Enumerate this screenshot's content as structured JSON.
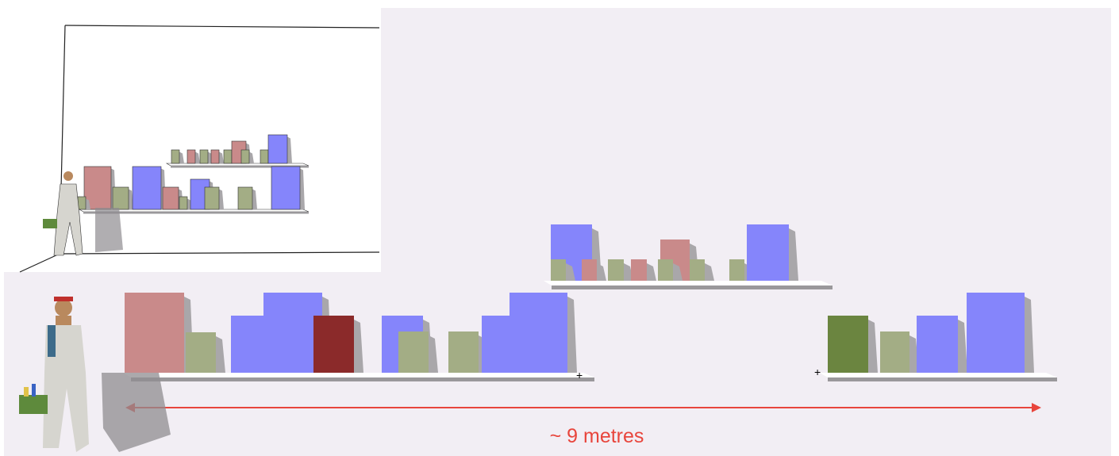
{
  "annotation": "~ 9 metres"
}
